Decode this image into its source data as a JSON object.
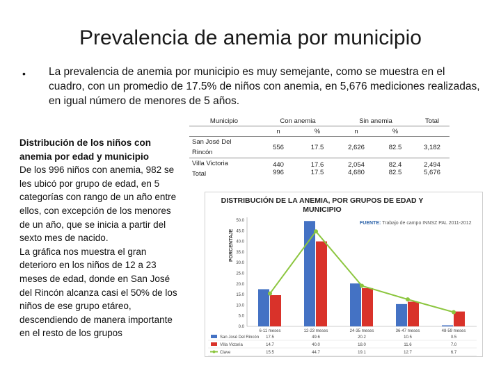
{
  "title": "Prevalencia de anemia por municipio",
  "bullet": {
    "symbol": "•",
    "text": "La prevalencia de anemia por municipio es muy semejante, como se muestra en el cuadro, con un promedio de 17.5% de niños con anemia, en 5,676 mediciones realizadas, en igual número de menores de 5 años."
  },
  "left": {
    "heading": "Distribución de los niños con anemia por edad y municipio",
    "paragraph1": "De los 996 niños con anemia, 982 se les ubicó por grupo de edad, en 5 categorías con rango de un año entre ellos, con excepción de los menores de un año, que se inicia a partir del sexto mes de nacido.",
    "paragraph2": "La gráfica nos muestra el gran deterioro en los niños de 12 a 23 meses de edad, donde en San José del Rincón alcanza casi el 50% de los niños de ese grupo etáreo, descendiendo de manera importante en el resto de los grupos"
  },
  "table": {
    "col_municipio": "Municipio",
    "col_con": "Con anemia",
    "col_sin": "Sin anemia",
    "col_total": "Total",
    "sub_n": "n",
    "sub_pct": "%",
    "rows": [
      {
        "name1": "San José Del",
        "name2": "Rincón",
        "con_n": "556",
        "con_pct": "17.5",
        "sin_n": "2,626",
        "sin_pct": "82.5",
        "total": "3,182"
      },
      {
        "name1": "Villa Victoria",
        "name2": "Total",
        "con_n1": "440",
        "con_n2": "996",
        "con_pct1": "17.6",
        "con_pct2": "17.5",
        "sin_n1": "2,054",
        "sin_n2": "4,680",
        "sin_pct1": "82.4",
        "sin_pct2": "82.5",
        "total1": "2,494",
        "total2": "5,676"
      }
    ]
  },
  "chart": {
    "title_line1": "DISTRIBUCIÓN DE LA ANEMIA, POR GRUPOS DE EDAD Y",
    "title_line2": "MUNICIPIO",
    "source_label": "FUENTE:",
    "source_text": "Trabajo de campo INNSZ PAL 2011-2012",
    "ylabel": "PORCENTAJE"
  },
  "chart_data": {
    "type": "bar",
    "title": "DISTRIBUCIÓN DE LA ANEMIA, POR GRUPOS DE EDAD Y MUNICIPIO",
    "ylabel": "PORCENTAJE",
    "ylim": [
      0,
      50
    ],
    "yticks": [
      "0.0",
      "5.0",
      "10.0",
      "15.0",
      "20.0",
      "25.0",
      "30.0",
      "35.0",
      "40.0",
      "45.0",
      "50.0"
    ],
    "categories": [
      "6-11 meses",
      "12-23 meses",
      "24-35 meses",
      "36-47 meses",
      "48-59 meses"
    ],
    "series": [
      {
        "name": "San José Del Rincón",
        "type": "bar",
        "color": "#4472c4",
        "values": [
          17.5,
          49.6,
          20.2,
          10.5,
          0.5
        ],
        "labels": [
          "17.5",
          "49.6",
          "20.2",
          "10.5",
          "0.5"
        ]
      },
      {
        "name": "Villa Victoria",
        "type": "bar",
        "color": "#d9322a",
        "values": [
          14.7,
          40.0,
          18.0,
          11.6,
          7.0
        ],
        "labels": [
          "14.7",
          "40.0",
          "18.0",
          "11.6",
          "7.0"
        ]
      },
      {
        "name": "Clave",
        "type": "line",
        "color": "#8cc63f",
        "values": [
          15.5,
          44.7,
          19.1,
          12.7,
          6.7
        ],
        "labels": [
          "15.5",
          "44.7",
          "19.1",
          "12.7",
          "6.7"
        ]
      }
    ]
  },
  "colors": {
    "bar1": "#4472c4",
    "bar2": "#d9322a",
    "line": "#8cc63f",
    "source": "#2a61a8"
  }
}
